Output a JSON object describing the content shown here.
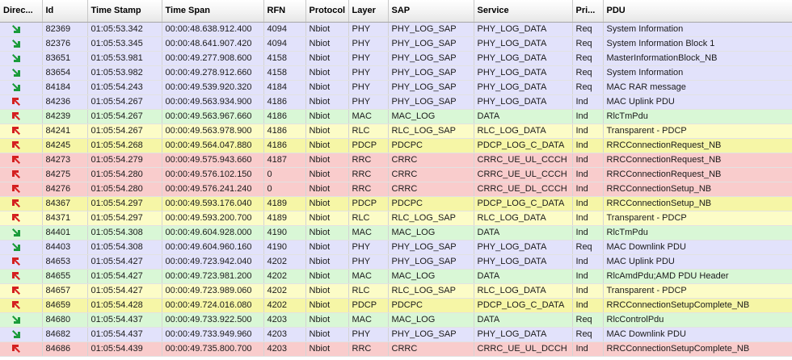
{
  "columns": [
    "Direc...",
    "Id",
    "Time Stamp",
    "Time Span",
    "RFN",
    "Protocol",
    "Layer",
    "SAP",
    "Service",
    "Pri...",
    "PDU"
  ],
  "colors": {
    "blue": "#e2e2fb",
    "green": "#d9f7d6",
    "yellow": "#fcfcc7",
    "pink": "#f9cccc",
    "yellowstrong": "#f6f6a6",
    "arrow_down": "#1a9b3a",
    "arrow_up": "#d42020"
  },
  "rows": [
    {
      "dir": "down-arrow-icon",
      "id": "82369",
      "ts": "01:05:53.342",
      "span": "00:00:48.638.912.400",
      "rfn": "4094",
      "proto": "Nbiot",
      "layer": "PHY",
      "sap": "PHY_LOG_SAP",
      "svc": "PHY_LOG_DATA",
      "pri": "Req",
      "pdu": "System Information",
      "color": "blue"
    },
    {
      "dir": "down-arrow-icon",
      "id": "82376",
      "ts": "01:05:53.345",
      "span": "00:00:48.641.907.420",
      "rfn": "4094",
      "proto": "Nbiot",
      "layer": "PHY",
      "sap": "PHY_LOG_SAP",
      "svc": "PHY_LOG_DATA",
      "pri": "Req",
      "pdu": "System Information Block 1",
      "color": "blue"
    },
    {
      "dir": "down-arrow-icon",
      "id": "83651",
      "ts": "01:05:53.981",
      "span": "00:00:49.277.908.600",
      "rfn": "4158",
      "proto": "Nbiot",
      "layer": "PHY",
      "sap": "PHY_LOG_SAP",
      "svc": "PHY_LOG_DATA",
      "pri": "Req",
      "pdu": "MasterInformationBlock_NB",
      "color": "blue"
    },
    {
      "dir": "down-arrow-icon",
      "id": "83654",
      "ts": "01:05:53.982",
      "span": "00:00:49.278.912.660",
      "rfn": "4158",
      "proto": "Nbiot",
      "layer": "PHY",
      "sap": "PHY_LOG_SAP",
      "svc": "PHY_LOG_DATA",
      "pri": "Req",
      "pdu": "System Information",
      "color": "blue"
    },
    {
      "dir": "down-arrow-icon",
      "id": "84184",
      "ts": "01:05:54.243",
      "span": "00:00:49.539.920.320",
      "rfn": "4184",
      "proto": "Nbiot",
      "layer": "PHY",
      "sap": "PHY_LOG_SAP",
      "svc": "PHY_LOG_DATA",
      "pri": "Req",
      "pdu": "MAC RAR message",
      "color": "blue"
    },
    {
      "dir": "up-arrow-icon",
      "id": "84236",
      "ts": "01:05:54.267",
      "span": "00:00:49.563.934.900",
      "rfn": "4186",
      "proto": "Nbiot",
      "layer": "PHY",
      "sap": "PHY_LOG_SAP",
      "svc": "PHY_LOG_DATA",
      "pri": "Ind",
      "pdu": "MAC Uplink PDU",
      "color": "blue"
    },
    {
      "dir": "up-arrow-icon",
      "id": "84239",
      "ts": "01:05:54.267",
      "span": "00:00:49.563.967.660",
      "rfn": "4186",
      "proto": "Nbiot",
      "layer": "MAC",
      "sap": "MAC_LOG",
      "svc": "DATA",
      "pri": "Ind",
      "pdu": "RlcTmPdu",
      "color": "green"
    },
    {
      "dir": "up-arrow-icon",
      "id": "84241",
      "ts": "01:05:54.267",
      "span": "00:00:49.563.978.900",
      "rfn": "4186",
      "proto": "Nbiot",
      "layer": "RLC",
      "sap": "RLC_LOG_SAP",
      "svc": "RLC_LOG_DATA",
      "pri": "Ind",
      "pdu": "Transparent - PDCP",
      "color": "yellow"
    },
    {
      "dir": "up-arrow-icon",
      "id": "84245",
      "ts": "01:05:54.268",
      "span": "00:00:49.564.047.880",
      "rfn": "4186",
      "proto": "Nbiot",
      "layer": "PDCP",
      "sap": "PDCPC",
      "svc": "PDCP_LOG_C_DATA",
      "pri": "Ind",
      "pdu": "RRCConnectionRequest_NB",
      "color": "yellowstrong"
    },
    {
      "dir": "up-arrow-icon",
      "id": "84273",
      "ts": "01:05:54.279",
      "span": "00:00:49.575.943.660",
      "rfn": "4187",
      "proto": "Nbiot",
      "layer": "RRC",
      "sap": "CRRC",
      "svc": "CRRC_UE_UL_CCCH",
      "pri": "Ind",
      "pdu": "RRCConnectionRequest_NB",
      "color": "pink"
    },
    {
      "dir": "up-arrow-icon",
      "id": "84275",
      "ts": "01:05:54.280",
      "span": "00:00:49.576.102.150",
      "rfn": "0",
      "proto": "Nbiot",
      "layer": "RRC",
      "sap": "CRRC",
      "svc": "CRRC_UE_UL_CCCH",
      "pri": "Ind",
      "pdu": "RRCConnectionRequest_NB",
      "color": "pink"
    },
    {
      "dir": "up-arrow-icon",
      "id": "84276",
      "ts": "01:05:54.280",
      "span": "00:00:49.576.241.240",
      "rfn": "0",
      "proto": "Nbiot",
      "layer": "RRC",
      "sap": "CRRC",
      "svc": "CRRC_UE_DL_CCCH",
      "pri": "Ind",
      "pdu": "RRCConnectionSetup_NB",
      "color": "pink"
    },
    {
      "dir": "up-arrow-icon",
      "id": "84367",
      "ts": "01:05:54.297",
      "span": "00:00:49.593.176.040",
      "rfn": "4189",
      "proto": "Nbiot",
      "layer": "PDCP",
      "sap": "PDCPC",
      "svc": "PDCP_LOG_C_DATA",
      "pri": "Ind",
      "pdu": "RRCConnectionSetup_NB",
      "color": "yellowstrong"
    },
    {
      "dir": "up-arrow-icon",
      "id": "84371",
      "ts": "01:05:54.297",
      "span": "00:00:49.593.200.700",
      "rfn": "4189",
      "proto": "Nbiot",
      "layer": "RLC",
      "sap": "RLC_LOG_SAP",
      "svc": "RLC_LOG_DATA",
      "pri": "Ind",
      "pdu": "Transparent - PDCP",
      "color": "yellow"
    },
    {
      "dir": "down-arrow-icon",
      "id": "84401",
      "ts": "01:05:54.308",
      "span": "00:00:49.604.928.000",
      "rfn": "4190",
      "proto": "Nbiot",
      "layer": "MAC",
      "sap": "MAC_LOG",
      "svc": "DATA",
      "pri": "Ind",
      "pdu": "RlcTmPdu",
      "color": "green"
    },
    {
      "dir": "down-arrow-icon",
      "id": "84403",
      "ts": "01:05:54.308",
      "span": "00:00:49.604.960.160",
      "rfn": "4190",
      "proto": "Nbiot",
      "layer": "PHY",
      "sap": "PHY_LOG_SAP",
      "svc": "PHY_LOG_DATA",
      "pri": "Req",
      "pdu": "MAC Downlink PDU",
      "color": "blue"
    },
    {
      "dir": "up-arrow-icon",
      "id": "84653",
      "ts": "01:05:54.427",
      "span": "00:00:49.723.942.040",
      "rfn": "4202",
      "proto": "Nbiot",
      "layer": "PHY",
      "sap": "PHY_LOG_SAP",
      "svc": "PHY_LOG_DATA",
      "pri": "Ind",
      "pdu": "MAC Uplink PDU",
      "color": "blue"
    },
    {
      "dir": "up-arrow-icon",
      "id": "84655",
      "ts": "01:05:54.427",
      "span": "00:00:49.723.981.200",
      "rfn": "4202",
      "proto": "Nbiot",
      "layer": "MAC",
      "sap": "MAC_LOG",
      "svc": "DATA",
      "pri": "Ind",
      "pdu": "RlcAmdPdu;AMD PDU Header",
      "color": "green"
    },
    {
      "dir": "up-arrow-icon",
      "id": "84657",
      "ts": "01:05:54.427",
      "span": "00:00:49.723.989.060",
      "rfn": "4202",
      "proto": "Nbiot",
      "layer": "RLC",
      "sap": "RLC_LOG_SAP",
      "svc": "RLC_LOG_DATA",
      "pri": "Ind",
      "pdu": "Transparent - PDCP",
      "color": "yellow"
    },
    {
      "dir": "up-arrow-icon",
      "id": "84659",
      "ts": "01:05:54.428",
      "span": "00:00:49.724.016.080",
      "rfn": "4202",
      "proto": "Nbiot",
      "layer": "PDCP",
      "sap": "PDCPC",
      "svc": "PDCP_LOG_C_DATA",
      "pri": "Ind",
      "pdu": "RRCConnectionSetupComplete_NB",
      "color": "yellowstrong"
    },
    {
      "dir": "down-arrow-icon",
      "id": "84680",
      "ts": "01:05:54.437",
      "span": "00:00:49.733.922.500",
      "rfn": "4203",
      "proto": "Nbiot",
      "layer": "MAC",
      "sap": "MAC_LOG",
      "svc": "DATA",
      "pri": "Req",
      "pdu": "RlcControlPdu",
      "color": "green"
    },
    {
      "dir": "down-arrow-icon",
      "id": "84682",
      "ts": "01:05:54.437",
      "span": "00:00:49.733.949.960",
      "rfn": "4203",
      "proto": "Nbiot",
      "layer": "PHY",
      "sap": "PHY_LOG_SAP",
      "svc": "PHY_LOG_DATA",
      "pri": "Req",
      "pdu": "MAC Downlink PDU",
      "color": "blue"
    },
    {
      "dir": "up-arrow-icon",
      "id": "84686",
      "ts": "01:05:54.439",
      "span": "00:00:49.735.800.700",
      "rfn": "4203",
      "proto": "Nbiot",
      "layer": "RRC",
      "sap": "CRRC",
      "svc": "CRRC_UE_UL_DCCH",
      "pri": "Ind",
      "pdu": "RRCConnectionSetupComplete_NB",
      "color": "pink"
    }
  ]
}
